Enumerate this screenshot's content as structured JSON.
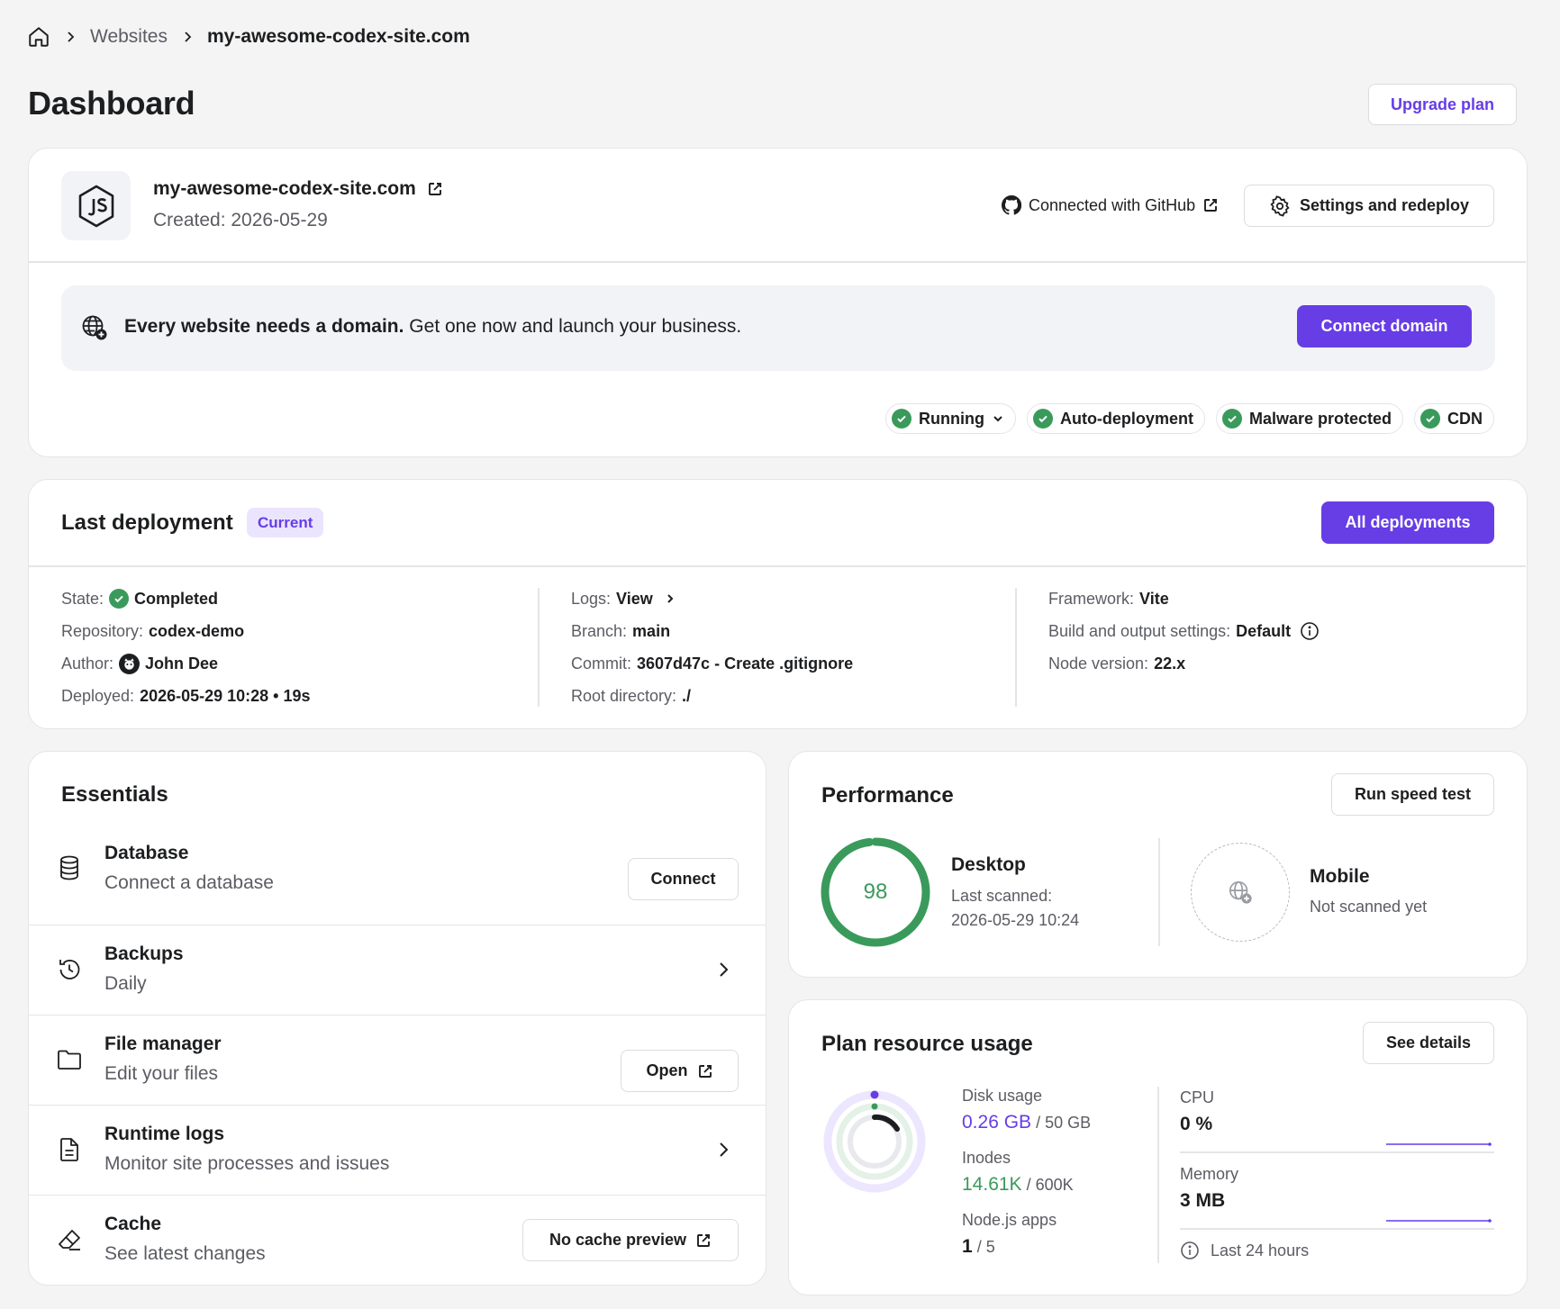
{
  "breadcrumb": {
    "home_icon": "home-icon",
    "websites": "Websites",
    "current": "my-awesome-codex-site.com"
  },
  "page": {
    "title": "Dashboard",
    "upgrade_label": "Upgrade plan"
  },
  "site": {
    "logo_icon": "nodejs-icon",
    "name": "my-awesome-codex-site.com",
    "created": "Created: 2026-05-29",
    "github_label": "Connected with GitHub",
    "settings_label": "Settings and redeploy"
  },
  "domain_banner": {
    "bold": "Every website needs a domain.",
    "text": " Get one now and launch your business.",
    "button": "Connect domain"
  },
  "status_chips": [
    {
      "label": "Running",
      "has_dropdown": true
    },
    {
      "label": "Auto-deployment"
    },
    {
      "label": "Malware protected"
    },
    {
      "label": "CDN"
    }
  ],
  "deployment": {
    "title": "Last deployment",
    "badge": "Current",
    "all_button": "All deployments",
    "col1": [
      {
        "k": "State:",
        "v": "Completed"
      },
      {
        "k": "Repository:",
        "v": "codex-demo"
      },
      {
        "k": "Author:",
        "v": "John Dee"
      },
      {
        "k": "Deployed:",
        "v": "2026-05-29 10:28 • 19s"
      }
    ],
    "col2": [
      {
        "k": "Logs:",
        "v": "View"
      },
      {
        "k": "Branch:",
        "v": "main"
      },
      {
        "k": "Commit:",
        "v": "3607d47c - Create .gitignore"
      },
      {
        "k": "Root directory:",
        "v": "./"
      }
    ],
    "col3": [
      {
        "k": "Framework:",
        "v": "Vite"
      },
      {
        "k": "Build and output settings:",
        "v": "Default"
      },
      {
        "k": "Node version:",
        "v": "22.x"
      }
    ]
  },
  "essentials": {
    "title": "Essentials",
    "items": [
      {
        "name": "Database",
        "desc": "Connect a database",
        "action": "Connect",
        "icon": "database-icon"
      },
      {
        "name": "Backups",
        "desc": "Daily",
        "icon": "history-icon"
      },
      {
        "name": "File manager",
        "desc": "Edit your files",
        "action": "Open",
        "icon": "folder-icon"
      },
      {
        "name": "Runtime logs",
        "desc": "Monitor site processes and issues",
        "icon": "file-icon"
      },
      {
        "name": "Cache",
        "desc": "See latest changes",
        "action": "No cache preview",
        "icon": "eraser-icon"
      }
    ]
  },
  "performance": {
    "title": "Performance",
    "run_button": "Run speed test",
    "desktop": {
      "label": "Desktop",
      "score": "98",
      "score_value": 98,
      "scanned_label": "Last scanned:",
      "scanned_at": "2026-05-29 10:24"
    },
    "mobile": {
      "label": "Mobile",
      "status": "Not scanned yet"
    }
  },
  "plan": {
    "title": "Plan resource usage",
    "details_button": "See details",
    "disk": {
      "label": "Disk usage",
      "used": "0.26 GB",
      "total": "/ 50 GB"
    },
    "inodes": {
      "label": "Inodes",
      "used": "14.61K",
      "total": "/ 600K"
    },
    "node_apps": {
      "label": "Node.js apps",
      "used": "1",
      "total": "/ 5"
    },
    "cpu": {
      "label": "CPU",
      "value": "0 %"
    },
    "memory": {
      "label": "Memory",
      "value": "3 MB"
    },
    "period": "Last 24 hours"
  },
  "colors": {
    "primary": "#673de6",
    "success": "#3a9a5b",
    "text": "#1d1e20",
    "muted": "#5b5c63",
    "background": "#f4f4f4"
  }
}
